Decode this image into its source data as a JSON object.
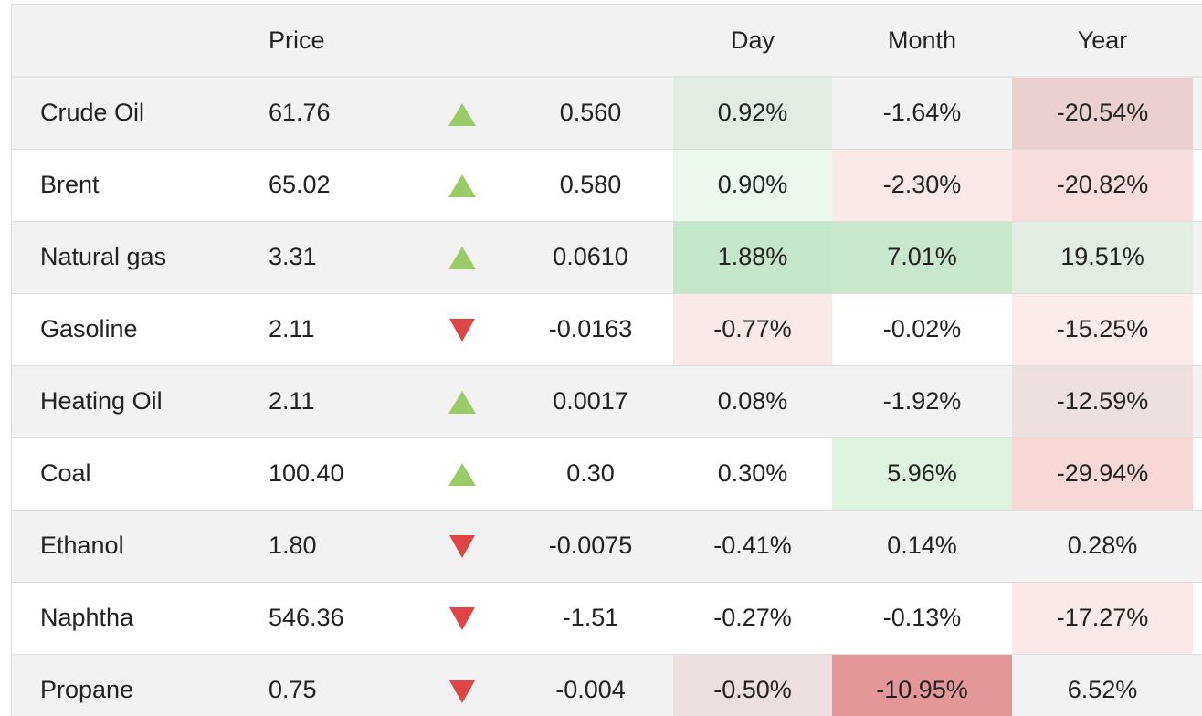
{
  "header": {
    "name": "",
    "price": "Price",
    "arrow": "",
    "change": "",
    "day": "Day",
    "month": "Month",
    "year": "Year"
  },
  "colors": {
    "up_arrow": "#99cc66",
    "down_arrow": "#e04545",
    "row_alt": "#f2f2f2"
  },
  "rows": [
    {
      "name": "Crude Oil",
      "price": "61.76",
      "direction": "up",
      "change": "0.560",
      "day": "0.92%",
      "month": "-1.64%",
      "year": "-20.54%",
      "day_bg": "#e2ece3",
      "month_bg": "",
      "year_bg": "#eccfcf"
    },
    {
      "name": "Brent",
      "price": "65.02",
      "direction": "up",
      "change": "0.580",
      "day": "0.90%",
      "month": "-2.30%",
      "year": "-20.82%",
      "day_bg": "#ecf8ee",
      "month_bg": "#fbe8e8",
      "year_bg": "#f9dcdc"
    },
    {
      "name": "Natural gas",
      "price": "3.31",
      "direction": "up",
      "change": "0.0610",
      "day": "1.88%",
      "month": "7.01%",
      "year": "19.51%",
      "day_bg": "#c4e6c9",
      "month_bg": "#c8e8cc",
      "year_bg": "#e2ece3"
    },
    {
      "name": "Gasoline",
      "price": "2.11",
      "direction": "down",
      "change": "-0.0163",
      "day": "-0.77%",
      "month": "-0.02%",
      "year": "-15.25%",
      "day_bg": "#fbe8e8",
      "month_bg": "",
      "year_bg": "#fcebeb"
    },
    {
      "name": "Heating Oil",
      "price": "2.11",
      "direction": "up",
      "change": "0.0017",
      "day": "0.08%",
      "month": "-1.92%",
      "year": "-12.59%",
      "day_bg": "",
      "month_bg": "",
      "year_bg": "#ece0e0"
    },
    {
      "name": "Coal",
      "price": "100.40",
      "direction": "up",
      "change": "0.30",
      "day": "0.30%",
      "month": "5.96%",
      "year": "-29.94%",
      "day_bg": "",
      "month_bg": "#dcf3df",
      "year_bg": "#f8d7d7"
    },
    {
      "name": "Ethanol",
      "price": "1.80",
      "direction": "down",
      "change": "-0.0075",
      "day": "-0.41%",
      "month": "0.14%",
      "year": "0.28%",
      "day_bg": "",
      "month_bg": "",
      "year_bg": ""
    },
    {
      "name": "Naphtha",
      "price": "546.36",
      "direction": "down",
      "change": "-1.51",
      "day": "-0.27%",
      "month": "-0.13%",
      "year": "-17.27%",
      "day_bg": "",
      "month_bg": "",
      "year_bg": "#fbe8e8"
    },
    {
      "name": "Propane",
      "price": "0.75",
      "direction": "down",
      "change": "-0.004",
      "day": "-0.50%",
      "month": "-10.95%",
      "year": "6.52%",
      "day_bg": "#ecdfdf",
      "month_bg": "#e39797",
      "year_bg": ""
    }
  ]
}
